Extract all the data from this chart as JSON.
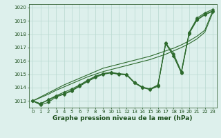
{
  "x": [
    0,
    1,
    2,
    3,
    4,
    5,
    6,
    7,
    8,
    9,
    10,
    11,
    12,
    13,
    14,
    15,
    16,
    17,
    18,
    19,
    20,
    21,
    22,
    23
  ],
  "line_main": [
    1013.0,
    1012.7,
    1012.9,
    1013.3,
    1013.5,
    1013.75,
    1014.1,
    1014.45,
    1014.75,
    1015.0,
    1015.1,
    1015.0,
    1014.95,
    1014.35,
    1014.0,
    1013.85,
    1014.1,
    1017.3,
    1016.35,
    1015.1,
    1018.1,
    1019.1,
    1019.5,
    1019.75
  ],
  "line_straight1": [
    1013.0,
    1013.3,
    1013.6,
    1013.9,
    1014.2,
    1014.45,
    1014.7,
    1014.95,
    1015.2,
    1015.45,
    1015.6,
    1015.75,
    1015.9,
    1016.05,
    1016.2,
    1016.35,
    1016.55,
    1016.75,
    1016.95,
    1017.2,
    1017.5,
    1017.85,
    1018.3,
    1019.75
  ],
  "line_straight2": [
    1013.0,
    1013.25,
    1013.5,
    1013.8,
    1014.05,
    1014.3,
    1014.55,
    1014.8,
    1015.0,
    1015.2,
    1015.35,
    1015.5,
    1015.65,
    1015.8,
    1015.95,
    1016.1,
    1016.3,
    1016.5,
    1016.75,
    1017.0,
    1017.3,
    1017.65,
    1018.15,
    1019.6
  ],
  "line_curved1": [
    1013.0,
    1012.8,
    1013.1,
    1013.4,
    1013.65,
    1013.9,
    1014.2,
    1014.55,
    1014.85,
    1015.05,
    1015.15,
    1015.05,
    1015.0,
    1014.4,
    1014.05,
    1013.9,
    1014.2,
    1017.35,
    1016.55,
    1015.2,
    1018.15,
    1019.2,
    1019.6,
    1019.85
  ],
  "line_curved2": [
    1013.0,
    1012.8,
    1013.05,
    1013.35,
    1013.55,
    1013.8,
    1014.15,
    1014.5,
    1014.8,
    1015.05,
    1015.12,
    1015.02,
    1014.97,
    1014.37,
    1014.02,
    1013.88,
    1014.15,
    1017.32,
    1016.4,
    1015.12,
    1018.05,
    1019.05,
    1019.45,
    1019.7
  ],
  "line_color": "#2d6a2d",
  "markersize": 2.5,
  "linewidth": 0.8,
  "ylim": [
    1012.5,
    1020.25
  ],
  "yticks": [
    1013,
    1014,
    1015,
    1016,
    1017,
    1018,
    1019,
    1020
  ],
  "xticks": [
    0,
    1,
    2,
    3,
    4,
    5,
    6,
    7,
    8,
    9,
    10,
    11,
    12,
    13,
    14,
    15,
    16,
    17,
    18,
    19,
    20,
    21,
    22,
    23
  ],
  "bg_color": "#ddf0ec",
  "grid_color": "#b8d8d0",
  "title": "Graphe pression niveau de la mer (hPa)",
  "title_color": "#1a4d1a",
  "title_fontsize": 6.5,
  "tick_fontsize": 5.0,
  "tick_color": "#1a4d1a"
}
